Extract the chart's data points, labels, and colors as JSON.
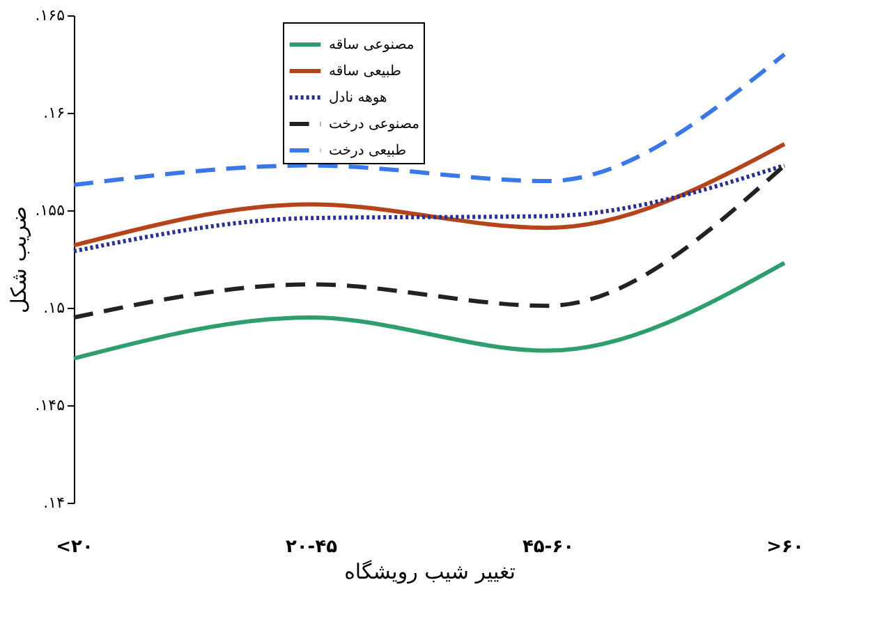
{
  "chart_data": {
    "type": "line",
    "xlabel": "تغییر شیب رویشگاه",
    "ylabel": "ضریب شکل",
    "categories": [
      "<۲۰",
      "۲۰-۴۵",
      "۴۵-۶۰",
      ">۶۰"
    ],
    "series": [
      {
        "name": "مصنوعی ساقه",
        "color": "#2e9e6e",
        "line_style": "solid",
        "values": [
          0.1474,
          0.1495,
          0.1478,
          0.1523
        ]
      },
      {
        "name": "طبیعی ساقه",
        "color": "#b5441a",
        "line_style": "solid",
        "values": [
          0.1532,
          0.1553,
          0.1541,
          0.1584
        ]
      },
      {
        "name": "هوهه نادل",
        "color": "#2b2f8f",
        "line_style": "dotted",
        "values": [
          0.1529,
          0.1546,
          0.1547,
          0.1573
        ]
      },
      {
        "name": "مصنوعی درخت",
        "color": "#222222",
        "line_style": "dashed",
        "values": [
          0.1495,
          0.1512,
          0.1501,
          0.1573
        ]
      },
      {
        "name": "طبیعی درخت",
        "color": "#3a78e8",
        "line_style": "dashed",
        "values": [
          0.1563,
          0.1573,
          0.1565,
          0.163
        ]
      }
    ],
    "ylim": [
      0.14,
      0.165
    ],
    "yticks": [
      {
        "value": 0.14,
        "label": ".۱۴"
      },
      {
        "value": 0.145,
        "label": ".۱۴۵"
      },
      {
        "value": 0.15,
        "label": ".۱۵"
      },
      {
        "value": 0.155,
        "label": ".۱۵۵"
      },
      {
        "value": 0.16,
        "label": ".۱۶"
      },
      {
        "value": 0.165,
        "label": ".۱۶۵"
      }
    ],
    "grid": false,
    "legend": "top"
  }
}
